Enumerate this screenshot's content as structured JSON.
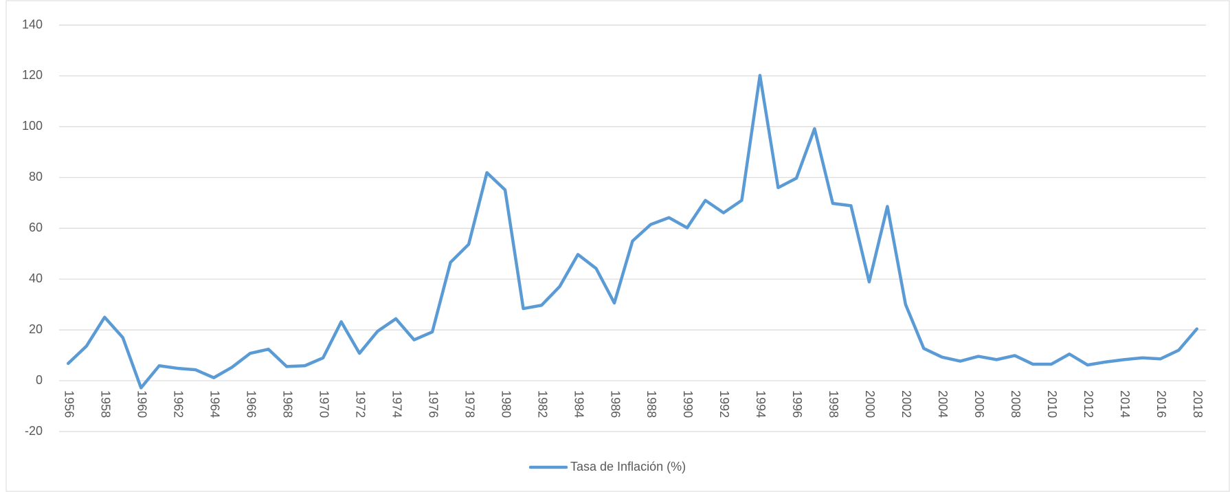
{
  "chart_data": {
    "type": "line",
    "categories": [
      1956,
      null,
      1958,
      null,
      1960,
      null,
      1962,
      null,
      1964,
      null,
      1966,
      null,
      1968,
      null,
      1970,
      null,
      1972,
      null,
      1974,
      null,
      1976,
      null,
      1978,
      null,
      1980,
      null,
      1982,
      null,
      1984,
      null,
      1986,
      null,
      1988,
      null,
      1990,
      null,
      1992,
      null,
      1994,
      null,
      1996,
      null,
      1998,
      null,
      2000,
      null,
      2002,
      null,
      2004,
      null,
      2006,
      null,
      2008,
      null,
      2010,
      null,
      2012,
      null,
      2014,
      null,
      2016,
      null,
      2018
    ],
    "series": [
      {
        "name": "Tasa de Inflación (%)",
        "color": "#5b9bd5",
        "values": [
          6.8,
          13.6,
          25,
          17,
          -2.8,
          5.9,
          4.9,
          4.3,
          1.2,
          5.3,
          10.8,
          12.4,
          5.6,
          5.9,
          9,
          23.2,
          10.8,
          19.5,
          24.4,
          16.1,
          19.2,
          46.6,
          53.7,
          81.9,
          75.1,
          28.4,
          29.7,
          37.1,
          49.7,
          44.2,
          30.6,
          55,
          61.5,
          64.2,
          60.2,
          71,
          66.1,
          71,
          120.2,
          76,
          79.7,
          99.2,
          69.8,
          68.9,
          38.9,
          68.6,
          30,
          12.7,
          9.3,
          7.7,
          9.6,
          8.3,
          9.9,
          6.5,
          6.5,
          10.5,
          6.2,
          7.4,
          8.3,
          9,
          8.6,
          12,
          20.4
        ]
      }
    ],
    "ylim": [
      -20,
      140
    ],
    "yticks": [
      -20,
      0,
      20,
      40,
      60,
      80,
      100,
      120,
      140
    ],
    "grid": true,
    "legend": "bottom"
  }
}
